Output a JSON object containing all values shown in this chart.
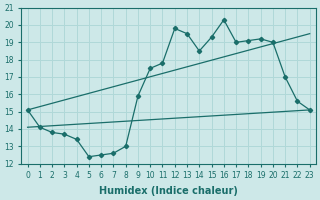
{
  "xlabel": "Humidex (Indice chaleur)",
  "bg_color": "#cde8e8",
  "grid_color": "#b0d8d8",
  "line_color": "#1a6e6a",
  "xlim": [
    -0.5,
    23.5
  ],
  "ylim": [
    12,
    21
  ],
  "xticks": [
    0,
    1,
    2,
    3,
    4,
    5,
    6,
    7,
    8,
    9,
    10,
    11,
    12,
    13,
    14,
    15,
    16,
    17,
    18,
    19,
    20,
    21,
    22,
    23
  ],
  "yticks": [
    12,
    13,
    14,
    15,
    16,
    17,
    18,
    19,
    20,
    21
  ],
  "main_line_x": [
    0,
    1,
    2,
    3,
    4,
    5,
    6,
    7,
    8,
    9,
    10,
    11,
    12,
    13,
    14,
    15,
    16,
    17,
    18,
    19,
    20,
    21,
    22,
    23
  ],
  "main_line_y": [
    15.1,
    14.1,
    13.8,
    13.7,
    13.4,
    12.4,
    12.5,
    12.6,
    13.0,
    15.9,
    17.5,
    17.8,
    19.8,
    19.5,
    18.5,
    19.3,
    20.3,
    19.0,
    19.1,
    19.2,
    19.0,
    17.0,
    15.6,
    15.1
  ],
  "upper_line": [
    [
      0,
      15.1
    ],
    [
      23,
      19.5
    ]
  ],
  "lower_line": [
    [
      0,
      14.1
    ],
    [
      23,
      15.1
    ]
  ],
  "xlabel_fontsize": 7,
  "tick_fontsize": 5.5
}
